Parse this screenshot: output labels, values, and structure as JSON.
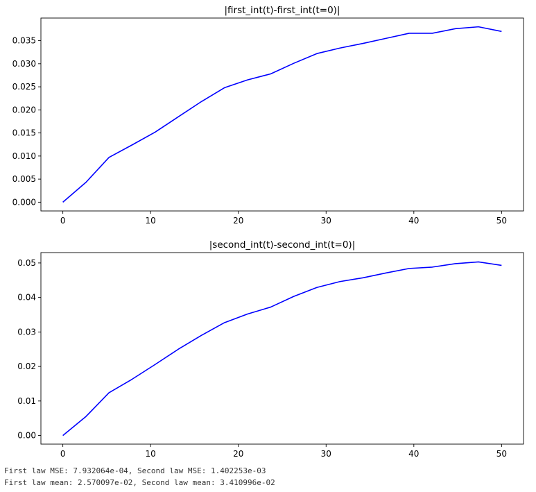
{
  "chart_data": [
    {
      "type": "line",
      "title": "|first_int(t)-first_int(t=0)|",
      "xlabel": "",
      "ylabel": "",
      "xlim": [
        -2.5,
        52.5
      ],
      "ylim": [
        -0.0019,
        0.0399
      ],
      "xticks": [
        0,
        10,
        20,
        30,
        40,
        50
      ],
      "xtick_labels": [
        "0",
        "10",
        "20",
        "30",
        "40",
        "50"
      ],
      "yticks": [
        0.0,
        0.005,
        0.01,
        0.015,
        0.02,
        0.025,
        0.03,
        0.035
      ],
      "ytick_labels": [
        "0.000",
        "0.005",
        "0.010",
        "0.015",
        "0.020",
        "0.025",
        "0.030",
        "0.035"
      ],
      "grid": false,
      "color": "#0000ff",
      "series": [
        {
          "x": [
            0,
            2.63,
            5.26,
            7.89,
            10.53,
            13.16,
            15.79,
            18.42,
            21.05,
            23.68,
            26.32,
            28.95,
            31.58,
            34.21,
            36.84,
            39.47,
            42.11,
            44.74,
            47.37,
            50.0
          ],
          "values": [
            0.0,
            0.0043,
            0.0097,
            0.0124,
            0.0152,
            0.0185,
            0.0218,
            0.0248,
            0.0265,
            0.0278,
            0.0301,
            0.0322,
            0.0334,
            0.0344,
            0.0355,
            0.0366,
            0.0366,
            0.0376,
            0.038,
            0.037
          ]
        }
      ]
    },
    {
      "type": "line",
      "title": "|second_int(t)-second_int(t=0)|",
      "xlabel": "",
      "ylabel": "",
      "xlim": [
        -2.5,
        52.5
      ],
      "ylim": [
        -0.0025,
        0.053
      ],
      "xticks": [
        0,
        10,
        20,
        30,
        40,
        50
      ],
      "xtick_labels": [
        "0",
        "10",
        "20",
        "30",
        "40",
        "50"
      ],
      "yticks": [
        0.0,
        0.01,
        0.02,
        0.03,
        0.04,
        0.05
      ],
      "ytick_labels": [
        "0.00",
        "0.01",
        "0.02",
        "0.03",
        "0.04",
        "0.05"
      ],
      "grid": false,
      "color": "#0000ff",
      "series": [
        {
          "x": [
            0,
            2.63,
            5.26,
            7.89,
            10.53,
            13.16,
            15.79,
            18.42,
            21.05,
            23.68,
            26.32,
            28.95,
            31.58,
            34.21,
            36.84,
            39.47,
            42.11,
            44.74,
            47.37,
            50.0
          ],
          "values": [
            0.0,
            0.0055,
            0.0124,
            0.0163,
            0.0206,
            0.025,
            0.029,
            0.0327,
            0.0352,
            0.0372,
            0.0403,
            0.0429,
            0.0446,
            0.0457,
            0.0471,
            0.0484,
            0.0488,
            0.0498,
            0.0503,
            0.0493
          ]
        }
      ]
    }
  ],
  "console": {
    "line1": "First law MSE: 7.932064e-04, Second law MSE: 1.402253e-03",
    "line2": "First law mean: 2.570097e-02, Second law mean: 3.410996e-02"
  }
}
